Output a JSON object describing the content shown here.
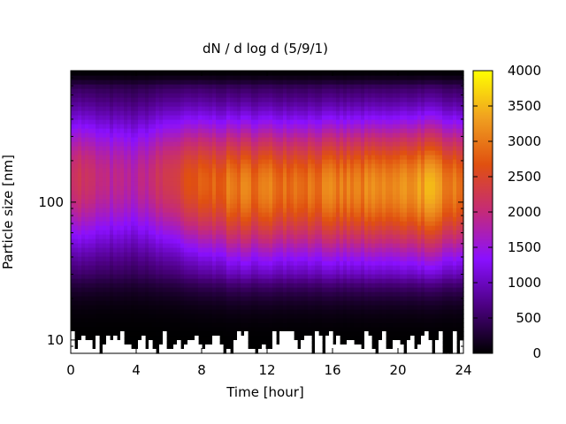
{
  "chart_data": {
    "type": "heatmap",
    "title": "dN / d log d (5/9/1)",
    "xlabel": "Time [hour]",
    "ylabel": "Particle size [nm]",
    "xlim": [
      0,
      24
    ],
    "ylim": [
      8,
      900
    ],
    "yscale": "log",
    "x_ticks": [
      0,
      4,
      8,
      12,
      16,
      20,
      24
    ],
    "y_ticks": [
      10,
      100
    ],
    "colorbar": {
      "min": 0,
      "max": 4000,
      "ticks": [
        0,
        500,
        1000,
        1500,
        2000,
        2500,
        3000,
        3500,
        4000
      ],
      "palette": [
        "#000000",
        "#4b0080",
        "#8a10ff",
        "#c42a7a",
        "#e05010",
        "#f0a020",
        "#ffff00"
      ]
    },
    "grid": false,
    "description_points": [
      {
        "time_hour": 0,
        "peak_size_nm": 150,
        "peak_value": 2300
      },
      {
        "time_hour": 2,
        "peak_size_nm": 150,
        "peak_value": 1900
      },
      {
        "time_hour": 4,
        "peak_size_nm": 150,
        "peak_value": 1800
      },
      {
        "time_hour": 6,
        "peak_size_nm": 150,
        "peak_value": 2300
      },
      {
        "time_hour": 8,
        "peak_size_nm": 140,
        "peak_value": 2700
      },
      {
        "time_hour": 10,
        "peak_size_nm": 130,
        "peak_value": 3000
      },
      {
        "time_hour": 12,
        "peak_size_nm": 130,
        "peak_value": 3000
      },
      {
        "time_hour": 16,
        "peak_size_nm": 130,
        "peak_value": 3000
      },
      {
        "time_hour": 20,
        "peak_size_nm": 130,
        "peak_value": 3100
      },
      {
        "time_hour": 21.5,
        "peak_size_nm": 130,
        "peak_value": 3400
      },
      {
        "time_hour": 24,
        "peak_size_nm": 130,
        "peak_value": 3000
      }
    ]
  }
}
